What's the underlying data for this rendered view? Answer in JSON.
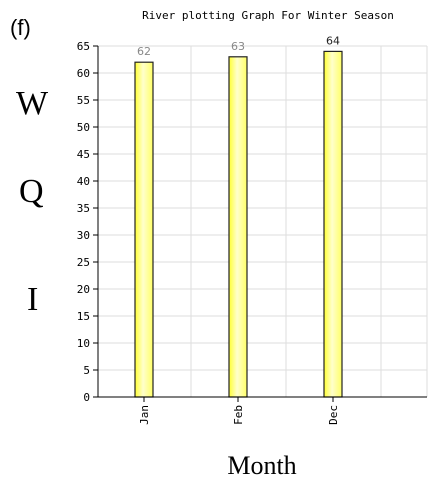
{
  "panel_label": "(f)",
  "side_letters": [
    "W",
    "Q",
    "I"
  ],
  "colors": {
    "bar_fill_top": "#ffff33",
    "bar_fill_bottom": "#ffff66",
    "bar_highlight": "#ffffcc",
    "bar_stroke": "#222222",
    "grid": "#dddddd",
    "axis": "#000000",
    "data_label_dim": "#888888",
    "data_label_dark": "#222222"
  },
  "chart_data": {
    "type": "bar",
    "title": "River plotting Graph For Winter Season",
    "xlabel": "Month",
    "ylabel": "",
    "categories": [
      "Jan",
      "Feb",
      "Dec"
    ],
    "values": [
      62,
      63,
      64
    ],
    "data_labels": [
      "62",
      "63",
      "64"
    ],
    "ylim": [
      0,
      65
    ],
    "yticks": [
      0,
      5,
      10,
      15,
      20,
      25,
      30,
      35,
      40,
      45,
      50,
      55,
      60,
      65
    ],
    "ytick_labels": [
      "0",
      "5",
      "10",
      "15",
      "20",
      "25",
      "30",
      "35",
      "40",
      "45",
      "50",
      "55",
      "60",
      "65"
    ],
    "grid": true,
    "legend": "none"
  }
}
